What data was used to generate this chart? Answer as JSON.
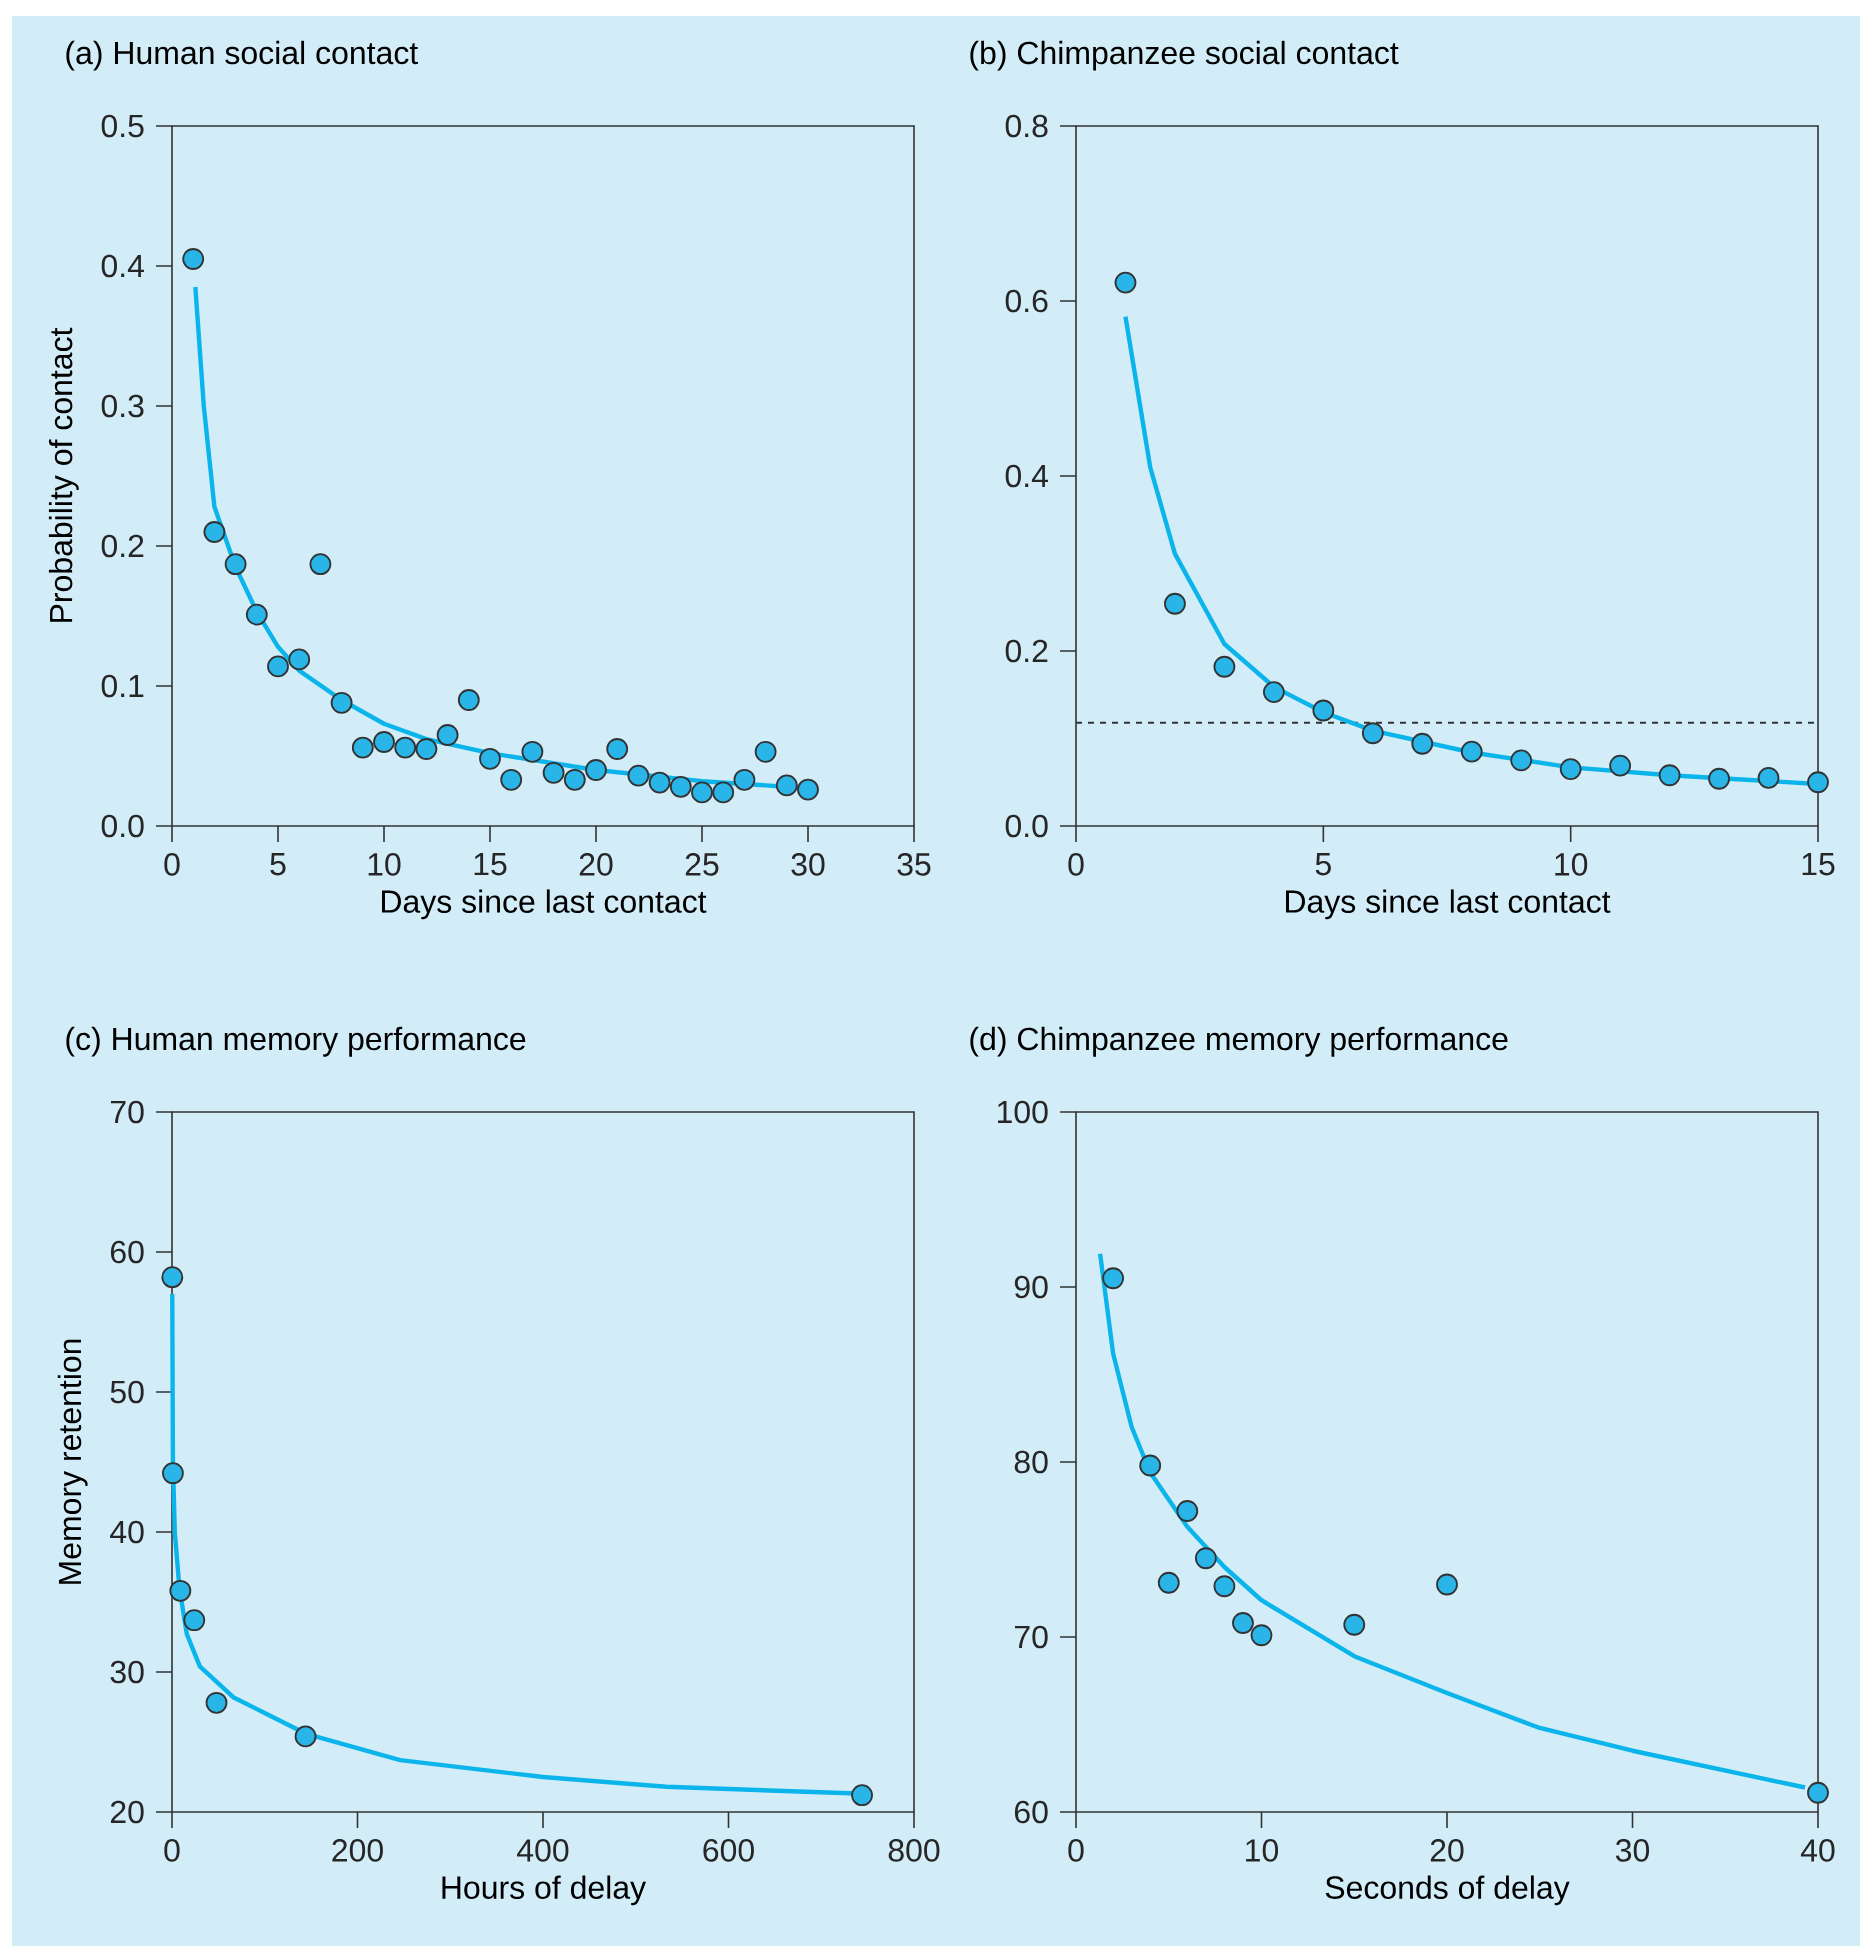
{
  "chart_data": [
    {
      "type": "scatter",
      "title": "(a) Human social contact",
      "xlabel": "Days since last contact",
      "ylabel": "Probability of contact",
      "xlim": [
        0,
        35
      ],
      "ylim": [
        0,
        0.5
      ],
      "xticks": [
        0,
        5,
        10,
        15,
        20,
        25,
        30,
        35
      ],
      "yticks": [
        {
          "value": 0,
          "label": "0.0"
        },
        0.1,
        0.2,
        0.3,
        0.4,
        0.5
      ],
      "marker": "circle",
      "series": [
        {
          "type": "scatter",
          "color": "#29b5e8",
          "x": [
            1,
            2,
            3,
            4,
            5,
            6,
            7,
            8,
            9,
            10,
            11,
            12,
            13,
            14,
            15,
            16,
            17,
            18,
            19,
            20,
            21,
            22,
            23,
            24,
            25,
            26,
            27,
            28,
            29,
            30
          ],
          "values": [
            0.405,
            0.21,
            0.187,
            0.151,
            0.114,
            0.119,
            0.187,
            0.088,
            0.056,
            0.06,
            0.056,
            0.055,
            0.065,
            0.09,
            0.048,
            0.033,
            0.053,
            0.038,
            0.033,
            0.04,
            0.055,
            0.036,
            0.031,
            0.028,
            0.024,
            0.024,
            0.033,
            0.053,
            0.029,
            0.026
          ]
        },
        {
          "type": "line",
          "marker": "none",
          "color": "#0bb4ea",
          "x": [
            1.1,
            1.5,
            2,
            3,
            4,
            5,
            6,
            8,
            10,
            12,
            15,
            20,
            25,
            30
          ],
          "values": [
            0.385,
            0.3,
            0.228,
            0.185,
            0.153,
            0.128,
            0.111,
            0.09,
            0.073,
            0.062,
            0.052,
            0.04,
            0.032,
            0.027
          ]
        }
      ]
    },
    {
      "type": "scatter",
      "title": "(b) Chimpanzee social contact",
      "xlabel": "Days since last contact",
      "xlim": [
        0,
        15
      ],
      "ylim": [
        0,
        0.8
      ],
      "xticks": [
        0,
        5,
        10,
        15
      ],
      "yticks": [
        {
          "value": 0,
          "label": "0.0"
        },
        0.2,
        0.4,
        0.6,
        0.8
      ],
      "marker": "circle",
      "ref_lines": [
        {
          "axis": "y",
          "value": 0.118,
          "color": "#333333",
          "line_style": "dashed"
        }
      ],
      "series": [
        {
          "type": "scatter",
          "color": "#29b5e8",
          "x": [
            1,
            2,
            3,
            4,
            5,
            6,
            7,
            8,
            9,
            10,
            11,
            12,
            13,
            14,
            15
          ],
          "values": [
            0.621,
            0.254,
            0.182,
            0.153,
            0.132,
            0.106,
            0.094,
            0.085,
            0.075,
            0.065,
            0.069,
            0.058,
            0.054,
            0.055,
            0.05
          ]
        },
        {
          "type": "line",
          "marker": "none",
          "color": "#0bb4ea",
          "x": [
            1,
            1.5,
            2,
            3,
            4,
            5,
            6,
            8,
            10,
            12,
            15
          ],
          "values": [
            0.582,
            0.41,
            0.311,
            0.208,
            0.159,
            0.13,
            0.109,
            0.084,
            0.067,
            0.058,
            0.048
          ]
        }
      ]
    },
    {
      "type": "scatter",
      "title": "(c) Human memory performance",
      "xlabel": "Hours of delay",
      "ylabel": "Memory retention",
      "xlim": [
        0,
        800
      ],
      "ylim": [
        20,
        70
      ],
      "xticks": [
        0,
        200,
        400,
        600,
        800
      ],
      "yticks": [
        20,
        30,
        40,
        50,
        60,
        70
      ],
      "marker": "circle",
      "series": [
        {
          "type": "scatter",
          "color": "#29b5e8",
          "x": [
            0.33,
            1,
            9,
            24,
            48,
            144,
            744
          ],
          "values": [
            58.2,
            44.2,
            35.8,
            33.7,
            27.8,
            25.4,
            21.2
          ]
        },
        {
          "type": "line",
          "marker": "none",
          "color": "#0bb4ea",
          "x": [
            0.3,
            1,
            3,
            8,
            16,
            30,
            66,
            102,
            144,
            246,
            400,
            533,
            746
          ],
          "values": [
            57,
            45,
            40,
            36,
            32.7,
            30.4,
            28.2,
            27,
            25.6,
            23.7,
            22.5,
            21.8,
            21.3
          ]
        }
      ]
    },
    {
      "type": "scatter",
      "title": "(d) Chimpanzee memory performance",
      "xlabel": "Seconds of delay",
      "xlim": [
        0,
        40
      ],
      "ylim": [
        60,
        100
      ],
      "xticks": [
        0,
        10,
        20,
        30,
        40
      ],
      "yticks": [
        60,
        70,
        80,
        90,
        100
      ],
      "marker": "circle",
      "series": [
        {
          "type": "scatter",
          "color": "#29b5e8",
          "x": [
            2,
            4,
            5,
            6,
            7,
            8,
            9,
            10,
            15,
            20,
            40
          ],
          "values": [
            90.5,
            79.8,
            73.1,
            77.2,
            74.5,
            72.9,
            70.8,
            70.1,
            70.7,
            73.0,
            61.1
          ]
        },
        {
          "type": "line",
          "marker": "none",
          "color": "#0bb4ea",
          "x": [
            1.3,
            2,
            3,
            4,
            6,
            8,
            10,
            15,
            20,
            25,
            30,
            39.3
          ],
          "values": [
            91.9,
            86.2,
            82.0,
            79.4,
            76.3,
            74.0,
            72.1,
            68.9,
            66.8,
            64.8,
            63.5,
            61.4
          ]
        }
      ]
    }
  ]
}
